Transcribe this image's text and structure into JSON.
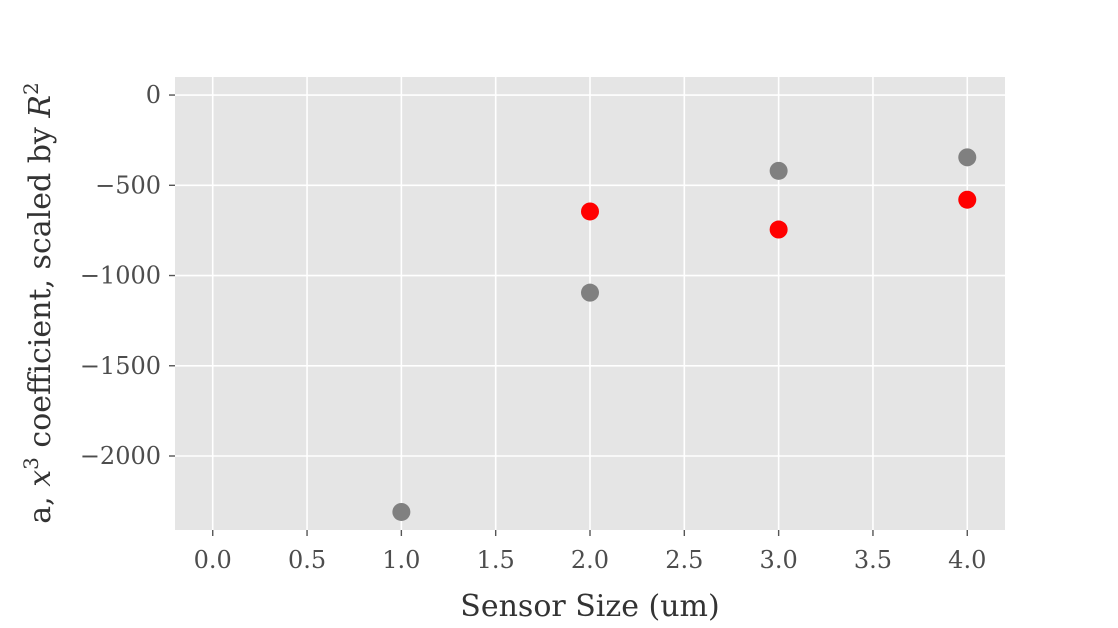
{
  "chart_data": {
    "type": "scatter",
    "title": "",
    "xlabel": "Sensor Size (um)",
    "ylabel": "a, x³ coefficient, scaled by R²",
    "xlim": [
      -0.2,
      4.2
    ],
    "ylim": [
      -2410,
      100
    ],
    "xticks": [
      0.0,
      0.5,
      1.0,
      1.5,
      2.0,
      2.5,
      3.0,
      3.5,
      4.0
    ],
    "xtick_labels": [
      "0.0",
      "0.5",
      "1.0",
      "1.5",
      "2.0",
      "2.5",
      "3.0",
      "3.5",
      "4.0"
    ],
    "yticks": [
      0,
      -500,
      -1000,
      -1500,
      -2000
    ],
    "ytick_labels": [
      "0",
      "−500",
      "−1000",
      "−1500",
      "−2000"
    ],
    "grid": true,
    "background": "#e5e5e5",
    "series": [
      {
        "color": "#808080",
        "x": [
          1.0,
          2.0,
          3.0,
          4.0
        ],
        "y": [
          -2310,
          -1095,
          -420,
          -345
        ]
      },
      {
        "color": "#ff0000",
        "x": [
          2.0,
          3.0,
          4.0
        ],
        "y": [
          -645,
          -745,
          -580
        ]
      }
    ]
  }
}
